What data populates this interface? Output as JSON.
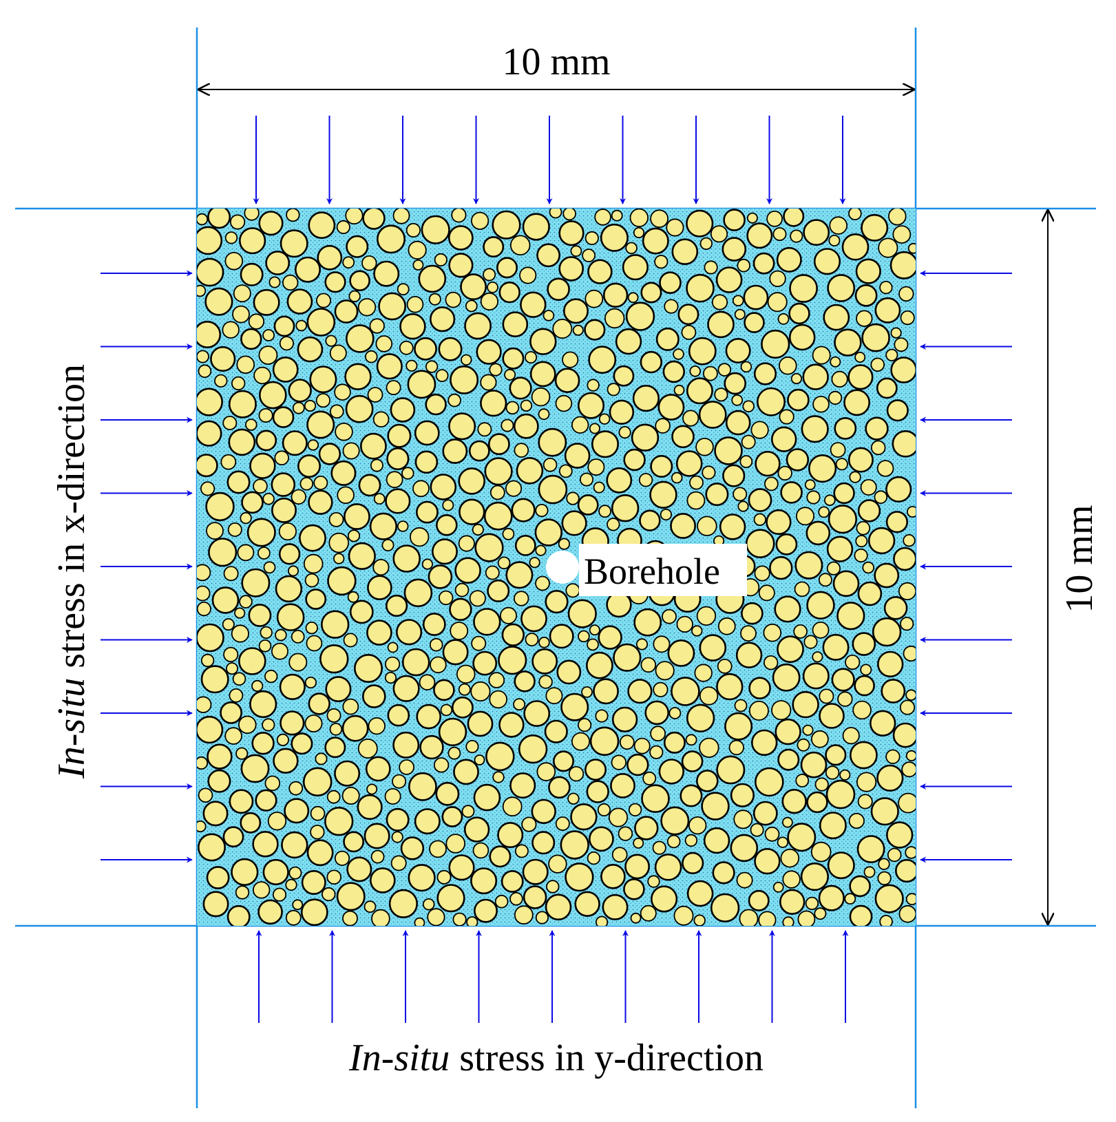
{
  "labels": {
    "width_dimension": "10 mm",
    "height_dimension": "10 mm",
    "borehole": "Borehole",
    "x_stress_prefix": "In-situ",
    "x_stress_suffix": " stress in x-direction",
    "y_stress_prefix": "In-situ",
    "y_stress_suffix": " stress in y-direction"
  },
  "colors": {
    "frame_line": "#1a8fe8",
    "stress_arrow": "#0a0ae6",
    "particle_fill": "#f7ec8f",
    "particle_stroke": "#000000",
    "cement": "#5fd6ee",
    "borehole": "#ffffff",
    "dimension": "#000000"
  },
  "arrows": {
    "top_count": 9,
    "bottom_count": 9,
    "left_count": 9,
    "right_count": 9
  }
}
